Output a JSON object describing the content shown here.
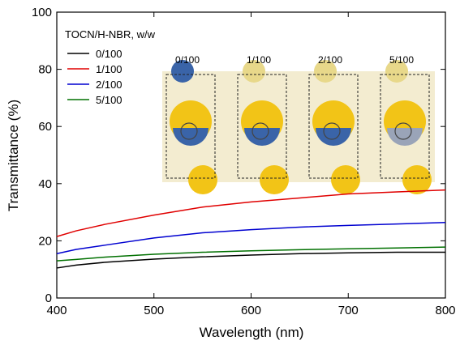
{
  "chart_data": {
    "type": "line",
    "x_label": "Wavelength (nm)",
    "y_label": "Transmittance (%)",
    "legend_title": "TOCN/H-NBR, w/w",
    "x": [
      400,
      420,
      450,
      500,
      550,
      600,
      650,
      700,
      750,
      800
    ],
    "series": [
      {
        "name": "0/100",
        "color": "#000000",
        "values": [
          10.5,
          11.5,
          12.5,
          13.6,
          14.4,
          15.0,
          15.5,
          15.8,
          16.0,
          16.0
        ]
      },
      {
        "name": "1/100",
        "color": "#e00000",
        "values": [
          21.5,
          23.5,
          25.8,
          29.0,
          31.8,
          33.6,
          35.0,
          36.4,
          37.1,
          37.8
        ]
      },
      {
        "name": "2/100",
        "color": "#0000d0",
        "values": [
          15.5,
          17.0,
          18.5,
          21.0,
          22.8,
          23.9,
          24.8,
          25.4,
          25.9,
          26.4
        ]
      },
      {
        "name": "5/100",
        "color": "#007000",
        "values": [
          13.0,
          13.5,
          14.3,
          15.3,
          16.0,
          16.5,
          16.9,
          17.2,
          17.5,
          17.8
        ]
      }
    ],
    "inset_labels": [
      "0/100",
      "1/100",
      "2/100",
      "5/100"
    ],
    "xlim": [
      400,
      800
    ],
    "xticks": [
      400,
      500,
      600,
      700,
      800
    ],
    "ylim": [
      0,
      100
    ],
    "yticks": [
      0,
      20,
      40,
      60,
      80,
      100
    ],
    "legend": "upper left",
    "grid": false
  }
}
